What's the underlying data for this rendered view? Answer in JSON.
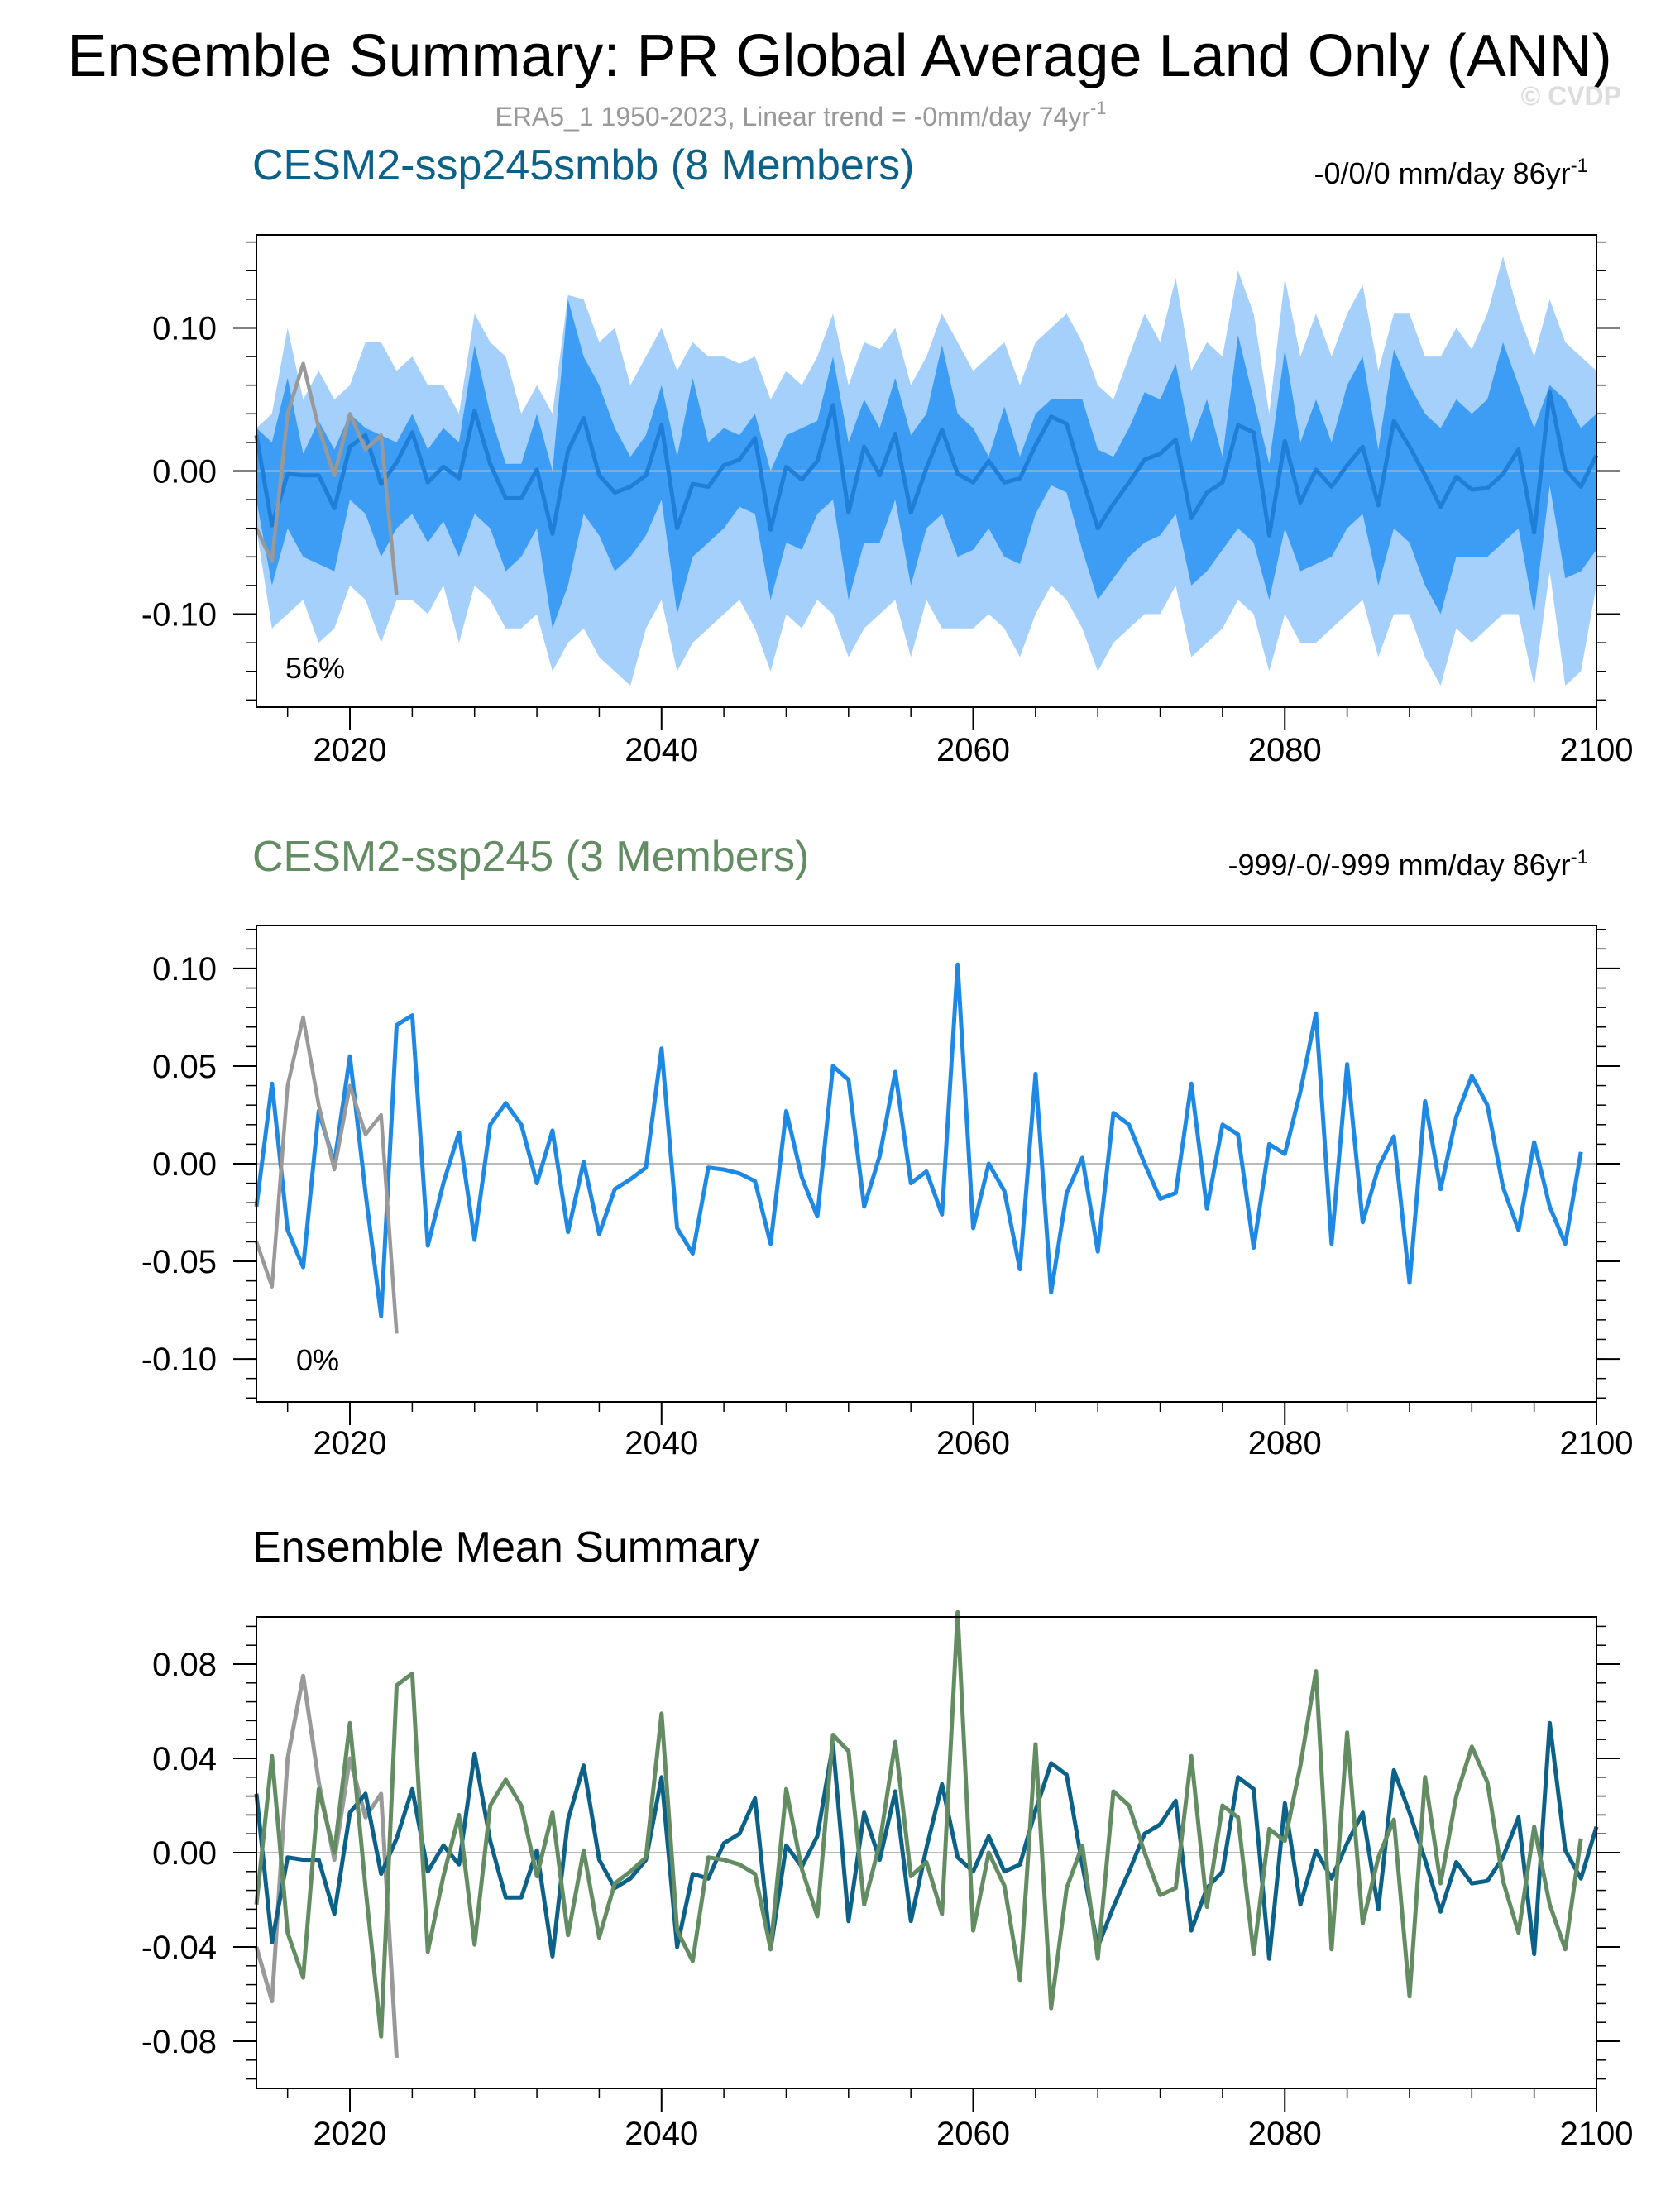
{
  "title": "Ensemble Summary: PR Global Average Land Only (ANN)",
  "subtitle": "ERA5_1 1950-2023, Linear trend = -0mm/day 74yr",
  "subtitle_sup": "-1",
  "watermark": "© CVDP",
  "colors": {
    "obs": "#999999",
    "ens_line": "#1e88e5",
    "band_outer": "#a4d0fb",
    "band_inner": "#3d9df5",
    "smbb_mean": "#0b6187",
    "ssp245_mean": "#638c63",
    "zero_line": "#bbbbbb"
  },
  "chart_data": [
    {
      "id": "panel1",
      "type": "area",
      "title": "CESM2-ssp245smbb (8 Members)",
      "title_color": "#0b6187",
      "trend_label": "-0/0/0 mm/day 86yr",
      "trend_sup": "-1",
      "percent_label": "56%",
      "xlim": [
        2014,
        2100
      ],
      "ylim": [
        -0.165,
        0.165
      ],
      "yticks": [
        -0.1,
        0.0,
        0.1
      ],
      "ytick_labels": [
        "-0.10",
        "0.00",
        "0.10"
      ],
      "xticks": [
        2020,
        2040,
        2060,
        2080,
        2100
      ],
      "xtick_labels": [
        "2020",
        "2040",
        "2060",
        "2080",
        "2100"
      ],
      "x_start": 2014,
      "obs_x_start": 2014,
      "obs": [
        -0.04,
        -0.063,
        0.04,
        0.075,
        0.03,
        -0.003,
        0.04,
        0.015,
        0.025,
        -0.087
      ],
      "ens_mean": [
        0.025,
        -0.038,
        -0.002,
        -0.003,
        -0.003,
        -0.026,
        0.017,
        0.025,
        -0.009,
        0.006,
        0.027,
        -0.008,
        0.003,
        -0.005,
        0.042,
        0.005,
        -0.019,
        -0.019,
        0.001,
        -0.044,
        0.014,
        0.037,
        -0.003,
        -0.015,
        -0.011,
        -0.003,
        0.032,
        -0.04,
        -0.009,
        -0.011,
        0.004,
        0.008,
        0.023,
        -0.041,
        0.003,
        -0.006,
        0.007,
        0.046,
        -0.029,
        0.017,
        -0.003,
        0.026,
        -0.029,
        0.002,
        0.029,
        -0.002,
        -0.008,
        0.007,
        -0.008,
        -0.005,
        0.018,
        0.038,
        0.033,
        -0.005,
        -0.04,
        -0.023,
        -0.008,
        0.008,
        0.012,
        0.022,
        -0.033,
        -0.015,
        -0.008,
        0.032,
        0.027,
        -0.045,
        0.021,
        -0.022,
        0.001,
        -0.011,
        0.004,
        0.017,
        -0.024,
        0.035,
        0.017,
        -0.003,
        -0.025,
        -0.004,
        -0.013,
        -0.012,
        -0.002,
        0.015,
        -0.043,
        0.055,
        0.001,
        -0.011,
        0.011
      ],
      "band_inner_upper": [
        0.03,
        0.02,
        0.065,
        0.012,
        0.035,
        0.015,
        0.04,
        0.03,
        0.025,
        0.02,
        0.04,
        0.015,
        0.03,
        0.02,
        0.088,
        0.04,
        0.005,
        0.005,
        0.04,
        0.0,
        0.12,
        0.08,
        0.06,
        0.03,
        0.01,
        0.025,
        0.06,
        0.01,
        0.065,
        0.02,
        0.03,
        0.025,
        0.04,
        0.0,
        0.025,
        0.03,
        0.035,
        0.08,
        0.02,
        0.05,
        0.03,
        0.065,
        0.025,
        0.04,
        0.088,
        0.04,
        0.03,
        0.01,
        0.045,
        0.01,
        0.04,
        0.05,
        0.05,
        0.05,
        0.015,
        0.01,
        0.03,
        0.055,
        0.05,
        0.075,
        0.02,
        0.05,
        0.01,
        0.095,
        0.05,
        0.005,
        0.085,
        0.02,
        0.05,
        0.02,
        0.06,
        0.08,
        0.015,
        0.085,
        0.06,
        0.04,
        0.03,
        0.05,
        0.04,
        0.05,
        0.09,
        0.06,
        0.03,
        0.06,
        0.05,
        0.03,
        0.04
      ],
      "band_inner_lower": [
        -0.02,
        -0.08,
        -0.04,
        -0.06,
        -0.065,
        -0.07,
        -0.02,
        -0.03,
        -0.06,
        -0.04,
        -0.03,
        -0.05,
        -0.035,
        -0.06,
        -0.03,
        -0.04,
        -0.07,
        -0.06,
        -0.04,
        -0.11,
        -0.08,
        -0.03,
        -0.045,
        -0.07,
        -0.06,
        -0.045,
        -0.02,
        -0.1,
        -0.06,
        -0.05,
        -0.04,
        -0.025,
        -0.03,
        -0.09,
        -0.05,
        -0.055,
        -0.03,
        -0.02,
        -0.09,
        -0.05,
        -0.05,
        -0.02,
        -0.08,
        -0.04,
        -0.03,
        -0.06,
        -0.055,
        -0.04,
        -0.06,
        -0.065,
        -0.03,
        -0.01,
        -0.015,
        -0.055,
        -0.09,
        -0.075,
        -0.06,
        -0.05,
        -0.045,
        -0.03,
        -0.08,
        -0.07,
        -0.055,
        -0.04,
        -0.05,
        -0.09,
        -0.04,
        -0.07,
        -0.065,
        -0.06,
        -0.04,
        -0.03,
        -0.08,
        -0.04,
        -0.05,
        -0.08,
        -0.1,
        -0.06,
        -0.06,
        -0.06,
        -0.05,
        -0.04,
        -0.1,
        -0.01,
        -0.075,
        -0.07,
        -0.055
      ],
      "band_outer_upper": [
        0.03,
        0.04,
        0.1,
        0.05,
        0.07,
        0.05,
        0.06,
        0.09,
        0.09,
        0.07,
        0.08,
        0.06,
        0.06,
        0.04,
        0.11,
        0.09,
        0.08,
        0.04,
        0.06,
        0.04,
        0.123,
        0.12,
        0.09,
        0.1,
        0.06,
        0.08,
        0.1,
        0.07,
        0.09,
        0.08,
        0.08,
        0.075,
        0.08,
        0.05,
        0.07,
        0.06,
        0.08,
        0.11,
        0.06,
        0.09,
        0.085,
        0.1,
        0.06,
        0.08,
        0.11,
        0.09,
        0.07,
        0.08,
        0.09,
        0.06,
        0.09,
        0.1,
        0.11,
        0.09,
        0.06,
        0.05,
        0.08,
        0.11,
        0.09,
        0.135,
        0.07,
        0.09,
        0.08,
        0.14,
        0.11,
        0.04,
        0.135,
        0.08,
        0.11,
        0.08,
        0.11,
        0.13,
        0.07,
        0.11,
        0.11,
        0.08,
        0.08,
        0.1,
        0.085,
        0.11,
        0.15,
        0.11,
        0.08,
        0.12,
        0.09,
        0.08,
        0.07
      ],
      "band_outer_lower": [
        -0.04,
        -0.11,
        -0.1,
        -0.09,
        -0.12,
        -0.11,
        -0.08,
        -0.09,
        -0.12,
        -0.09,
        -0.09,
        -0.1,
        -0.08,
        -0.12,
        -0.08,
        -0.09,
        -0.11,
        -0.11,
        -0.1,
        -0.14,
        -0.12,
        -0.11,
        -0.13,
        -0.14,
        -0.15,
        -0.11,
        -0.09,
        -0.14,
        -0.12,
        -0.11,
        -0.1,
        -0.09,
        -0.11,
        -0.14,
        -0.1,
        -0.11,
        -0.09,
        -0.1,
        -0.13,
        -0.11,
        -0.1,
        -0.09,
        -0.13,
        -0.09,
        -0.11,
        -0.11,
        -0.11,
        -0.1,
        -0.11,
        -0.13,
        -0.1,
        -0.08,
        -0.09,
        -0.11,
        -0.14,
        -0.12,
        -0.11,
        -0.1,
        -0.1,
        -0.08,
        -0.13,
        -0.12,
        -0.11,
        -0.09,
        -0.1,
        -0.14,
        -0.1,
        -0.12,
        -0.12,
        -0.11,
        -0.1,
        -0.09,
        -0.13,
        -0.1,
        -0.1,
        -0.13,
        -0.15,
        -0.11,
        -0.12,
        -0.11,
        -0.1,
        -0.1,
        -0.15,
        -0.07,
        -0.15,
        -0.14,
        -0.08
      ]
    },
    {
      "id": "panel2",
      "type": "line",
      "title": "CESM2-ssp245 (3 Members)",
      "title_color": "#638c63",
      "trend_label": "-999/-0/-999 mm/day 86yr",
      "trend_sup": "-1",
      "percent_label": "0%",
      "xlim": [
        2014,
        2100
      ],
      "ylim": [
        -0.122,
        0.122
      ],
      "yticks": [
        -0.1,
        -0.05,
        0.0,
        0.05,
        0.1
      ],
      "ytick_labels": [
        "-0.10",
        "-0.05",
        "0.00",
        "0.05",
        "0.10"
      ],
      "xticks": [
        2020,
        2040,
        2060,
        2080,
        2100
      ],
      "xtick_labels": [
        "2020",
        "2040",
        "2060",
        "2080",
        "2100"
      ],
      "x_start": 2014,
      "obs_x_start": 2014,
      "obs": [
        -0.04,
        -0.063,
        0.04,
        0.075,
        0.03,
        -0.003,
        0.04,
        0.015,
        0.025,
        -0.087
      ],
      "ens_mean": [
        -0.022,
        0.041,
        -0.034,
        -0.053,
        0.027,
        0.0,
        0.055,
        -0.015,
        -0.078,
        0.071,
        0.076,
        -0.042,
        -0.01,
        0.016,
        -0.039,
        0.02,
        0.031,
        0.02,
        -0.01,
        0.017,
        -0.035,
        0.001,
        -0.036,
        -0.013,
        -0.008,
        -0.002,
        0.059,
        -0.033,
        -0.046,
        -0.002,
        -0.003,
        -0.005,
        -0.009,
        -0.041,
        0.027,
        -0.007,
        -0.027,
        0.05,
        0.043,
        -0.022,
        0.004,
        0.047,
        -0.01,
        -0.004,
        -0.026,
        0.102,
        -0.033,
        0.0,
        -0.014,
        -0.054,
        0.046,
        -0.066,
        -0.015,
        0.003,
        -0.045,
        0.026,
        0.02,
        0.0,
        -0.018,
        -0.015,
        0.041,
        -0.023,
        0.02,
        0.015,
        -0.043,
        0.01,
        0.005,
        0.037,
        0.077,
        -0.041,
        0.051,
        -0.03,
        -0.002,
        0.014,
        -0.061,
        0.032,
        -0.013,
        0.024,
        0.045,
        0.03,
        -0.012,
        -0.034,
        0.011,
        -0.022,
        -0.041,
        0.006
      ]
    },
    {
      "id": "panel3",
      "type": "line",
      "title": "Ensemble Mean Summary",
      "title_color": "#000000",
      "xlim": [
        2014,
        2100
      ],
      "ylim": [
        -0.1,
        0.1
      ],
      "yticks": [
        -0.08,
        -0.04,
        0.0,
        0.04,
        0.08
      ],
      "ytick_labels": [
        "-0.08",
        "-0.04",
        "0.00",
        "0.04",
        "0.08"
      ],
      "xticks": [
        2020,
        2040,
        2060,
        2080,
        2100
      ],
      "xtick_labels": [
        "2020",
        "2040",
        "2060",
        "2080",
        "2100"
      ],
      "x_start": 2014,
      "obs_x_start": 2014,
      "series": [
        {
          "name": "ERA5_1",
          "color_key": "obs",
          "ref": "obs"
        },
        {
          "name": "CESM2-ssp245smbb",
          "color_key": "smbb_mean",
          "ref": "panel1"
        },
        {
          "name": "CESM2-ssp245",
          "color_key": "ssp245_mean",
          "ref": "panel2"
        }
      ]
    }
  ]
}
